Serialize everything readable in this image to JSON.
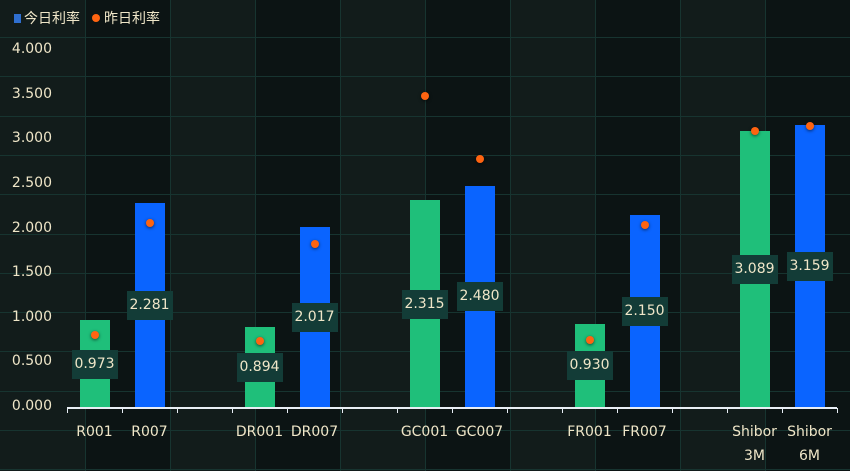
{
  "legend": {
    "today_label": "今日利率",
    "yesterday_label": "昨日利率",
    "today_color": "#2f6fd0",
    "yesterday_color": "#ff6411"
  },
  "colors": {
    "green_bar": "#1fbf7a",
    "blue_bar": "#0a64ff",
    "label_box": "#133c37",
    "text": "#efe6c8"
  },
  "y_axis": {
    "ticks": [
      "0.000",
      "0.500",
      "1.000",
      "1.500",
      "2.000",
      "2.500",
      "3.000",
      "3.500",
      "4.000"
    ]
  },
  "x_axis": {
    "categories": [
      "R001",
      "R007",
      "",
      "DR001",
      "DR007",
      "",
      "GC001",
      "GC007",
      "",
      "FR001",
      "FR007",
      "",
      "Shibor 3M",
      "Shibor 6M"
    ]
  },
  "chart_data": {
    "type": "bar",
    "title": "",
    "xlabel": "",
    "ylabel": "",
    "ylim": [
      0,
      4
    ],
    "grid": true,
    "legend_position": "top-left",
    "categories": [
      "R001",
      "R007",
      "DR001",
      "DR007",
      "GC001",
      "GC007",
      "FR001",
      "FR007",
      "Shibor 3M",
      "Shibor 6M"
    ],
    "series": [
      {
        "name": "今日利率",
        "type": "bar",
        "values": [
          0.973,
          2.281,
          0.894,
          2.017,
          2.315,
          2.48,
          0.93,
          2.15,
          3.089,
          3.159
        ]
      },
      {
        "name": "昨日利率",
        "type": "scatter",
        "values": [
          0.81,
          2.06,
          0.74,
          1.83,
          3.48,
          2.78,
          0.75,
          2.04,
          3.09,
          3.15
        ]
      }
    ],
    "value_labels": [
      "0.973",
      "2.281",
      "0.894",
      "2.017",
      "2.315",
      "2.480",
      "0.930",
      "2.150",
      "3.089",
      "3.159"
    ]
  }
}
